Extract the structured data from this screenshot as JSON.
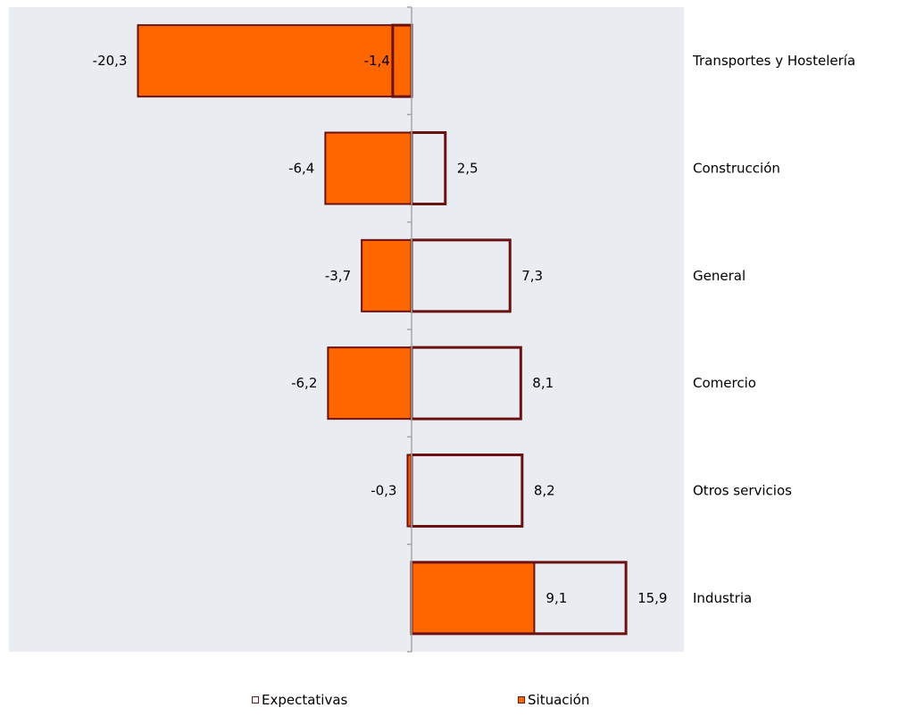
{
  "chart_data": {
    "type": "bar",
    "orientation": "horizontal",
    "categories": [
      "Transportes y Hostelería",
      "Construcción",
      "General",
      "Comercio",
      "Otros servicios",
      "Industria"
    ],
    "series": [
      {
        "name": "Expectativas",
        "values": [
          -1.4,
          2.5,
          7.3,
          8.1,
          8.2,
          15.9
        ],
        "labels": [
          "-1,4",
          "2,5",
          "7,3",
          "8,1",
          "8,2",
          "15,9"
        ],
        "fill": "#ffffff",
        "stroke": "#6b1111"
      },
      {
        "name": "Situación",
        "values": [
          -20.3,
          -6.4,
          -3.7,
          -6.2,
          -0.3,
          9.1
        ],
        "labels": [
          "-20,3",
          "-6,4",
          "-3,7",
          "-6,2",
          "-0,3",
          "9,1"
        ],
        "fill": "#ff6600",
        "stroke": "#6b1111"
      }
    ],
    "xlim": [
      -30,
      20
    ],
    "grid": false,
    "legend_position": "bottom",
    "plot_background": "#e9ecf0",
    "axis_color": "#a6a6a6"
  },
  "legend": {
    "items": [
      {
        "label": "Expectativas",
        "fill": "#ffffff",
        "stroke": "#6b1111"
      },
      {
        "label": "Situación",
        "fill": "#ff6600",
        "stroke": "#6b1111"
      }
    ]
  }
}
